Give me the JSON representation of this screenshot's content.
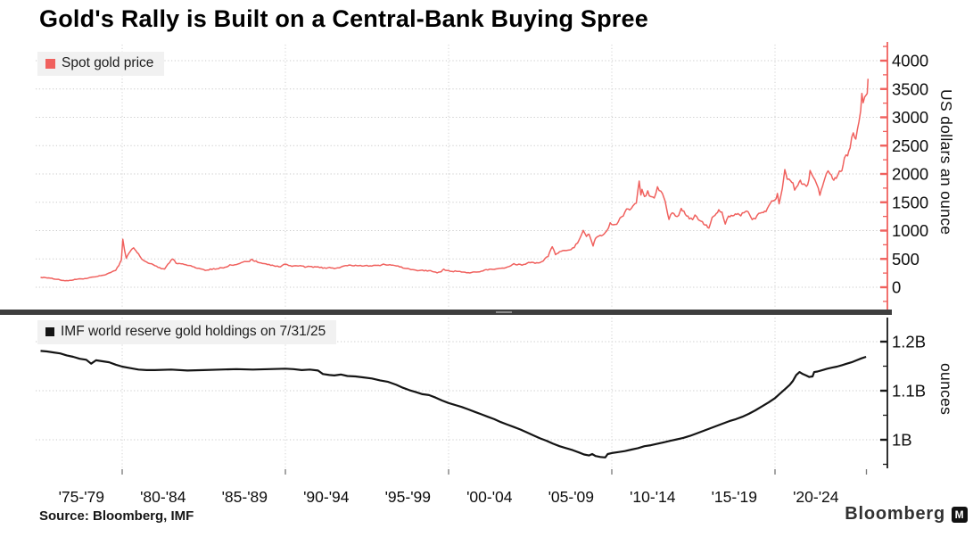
{
  "title": "Gold's Rally is Built on a Central-Bank Buying Spree",
  "source": "Source: Bloomberg, IMF",
  "watermark": {
    "brand": "Bloomberg",
    "badge": "M"
  },
  "colors": {
    "gold_line": "#F0615E",
    "holdings_line": "#141414",
    "grid": "#c9c9c9",
    "grid_vertical": "#d2d2d2",
    "legend_bg": "#f1f1f1",
    "divider": "#3e3e3e",
    "text": "#111111"
  },
  "x_axis": {
    "gridline_years": [
      1980,
      1990,
      2000,
      2010,
      2020
    ],
    "end_tick_year": 2025.6,
    "labels": [
      {
        "text": "'75-'79",
        "center_year": 1977.5
      },
      {
        "text": "'80-'84",
        "center_year": 1982.5
      },
      {
        "text": "'85-'89",
        "center_year": 1987.5
      },
      {
        "text": "'90-'94",
        "center_year": 1992.5
      },
      {
        "text": "'95-'99",
        "center_year": 1997.5
      },
      {
        "text": "'00-'04",
        "center_year": 2002.5
      },
      {
        "text": "'05-'09",
        "center_year": 2007.5
      },
      {
        "text": "'10-'14",
        "center_year": 2012.5
      },
      {
        "text": "'15-'19",
        "center_year": 2017.5
      },
      {
        "text": "'20-'24",
        "center_year": 2022.5
      }
    ]
  },
  "chart_data": [
    {
      "type": "line",
      "panel": "top",
      "name": "Spot gold price",
      "color": "#F0615E",
      "ylabel": "US dollars an ounce",
      "ylim": [
        0,
        4000
      ],
      "yticks": [
        {
          "v": 0,
          "label": "0"
        },
        {
          "v": 500,
          "label": "500"
        },
        {
          "v": 1000,
          "label": "1000"
        },
        {
          "v": 1500,
          "label": "1500"
        },
        {
          "v": 2000,
          "label": "2000"
        },
        {
          "v": 2500,
          "label": "2500"
        },
        {
          "v": 3000,
          "label": "3000"
        },
        {
          "v": 3500,
          "label": "3500"
        },
        {
          "v": 4000,
          "label": "4000"
        }
      ],
      "minor_yticks": [
        -250,
        250,
        750,
        1250,
        1750,
        2250,
        2750,
        3250,
        3750,
        4250
      ],
      "x": [
        1975.0,
        1975.3,
        1975.6,
        1975.9,
        1976.2,
        1976.5,
        1976.8,
        1977.1,
        1977.4,
        1977.7,
        1978.0,
        1978.4,
        1978.7,
        1979.0,
        1979.3,
        1979.6,
        1979.8,
        1979.95,
        1980.04,
        1980.15,
        1980.25,
        1980.4,
        1980.55,
        1980.7,
        1980.85,
        1981.0,
        1981.2,
        1981.5,
        1981.8,
        1982.1,
        1982.4,
        1982.6,
        1982.8,
        1983.0,
        1983.1,
        1983.3,
        1983.6,
        1983.9,
        1984.2,
        1984.5,
        1984.8,
        1985.1,
        1985.4,
        1985.7,
        1986.0,
        1986.3,
        1986.6,
        1986.9,
        1987.2,
        1987.5,
        1987.8,
        1987.95,
        1988.2,
        1988.5,
        1988.8,
        1989.1,
        1989.4,
        1989.7,
        1989.9,
        1990.1,
        1990.4,
        1990.6,
        1990.9,
        1991.2,
        1991.5,
        1991.8,
        1992.1,
        1992.4,
        1992.7,
        1993.0,
        1993.3,
        1993.6,
        1993.9,
        1994.2,
        1994.5,
        1994.8,
        1995.1,
        1995.4,
        1995.7,
        1996.0,
        1996.3,
        1996.6,
        1996.9,
        1997.2,
        1997.5,
        1997.8,
        1998.1,
        1998.4,
        1998.7,
        1999.0,
        1999.3,
        1999.55,
        1999.7,
        1999.9,
        2000.2,
        2000.5,
        2000.8,
        2001.1,
        2001.3,
        2001.6,
        2001.9,
        2002.2,
        2002.5,
        2002.8,
        2003.1,
        2003.4,
        2003.7,
        2004.0,
        2004.3,
        2004.6,
        2004.9,
        2005.2,
        2005.5,
        2005.8,
        2006.1,
        2006.35,
        2006.55,
        2006.8,
        2007.1,
        2007.4,
        2007.7,
        2007.9,
        2008.15,
        2008.25,
        2008.45,
        2008.6,
        2008.75,
        2008.85,
        2009.0,
        2009.2,
        2009.45,
        2009.7,
        2009.9,
        2010.1,
        2010.3,
        2010.5,
        2010.7,
        2010.9,
        2011.1,
        2011.3,
        2011.5,
        2011.68,
        2011.78,
        2011.85,
        2012.0,
        2012.2,
        2012.4,
        2012.6,
        2012.8,
        2013.0,
        2013.2,
        2013.35,
        2013.5,
        2013.7,
        2013.9,
        2014.1,
        2014.25,
        2014.5,
        2014.75,
        2014.95,
        2015.1,
        2015.3,
        2015.55,
        2015.8,
        2015.95,
        2016.15,
        2016.4,
        2016.55,
        2016.75,
        2016.95,
        2017.15,
        2017.4,
        2017.65,
        2017.9,
        2018.1,
        2018.35,
        2018.6,
        2018.8,
        2019.0,
        2019.2,
        2019.45,
        2019.6,
        2019.8,
        2020.0,
        2020.15,
        2020.25,
        2020.45,
        2020.6,
        2020.75,
        2020.95,
        2021.1,
        2021.2,
        2021.4,
        2021.55,
        2021.7,
        2021.85,
        2022.0,
        2022.15,
        2022.35,
        2022.55,
        2022.75,
        2022.9,
        2023.05,
        2023.25,
        2023.45,
        2023.6,
        2023.75,
        2023.95,
        2024.1,
        2024.25,
        2024.45,
        2024.6,
        2024.8,
        2024.95,
        2025.05,
        2025.15,
        2025.25,
        2025.32,
        2025.4,
        2025.5,
        2025.58,
        2025.65,
        2025.7
      ],
      "y": [
        175,
        168,
        160,
        145,
        130,
        112,
        120,
        135,
        145,
        150,
        168,
        185,
        205,
        228,
        255,
        300,
        390,
        480,
        835,
        640,
        520,
        600,
        650,
        690,
        640,
        580,
        500,
        440,
        415,
        370,
        330,
        320,
        400,
        480,
        500,
        430,
        415,
        390,
        380,
        345,
        330,
        300,
        315,
        325,
        340,
        345,
        390,
        400,
        420,
        450,
        465,
        485,
        455,
        435,
        415,
        390,
        375,
        365,
        405,
        395,
        370,
        385,
        380,
        360,
        365,
        355,
        350,
        340,
        345,
        330,
        345,
        380,
        385,
        380,
        385,
        380,
        378,
        385,
        383,
        400,
        395,
        385,
        370,
        345,
        325,
        310,
        295,
        300,
        290,
        285,
        260,
        268,
        320,
        290,
        280,
        285,
        270,
        262,
        258,
        272,
        278,
        300,
        315,
        320,
        340,
        330,
        370,
        410,
        400,
        395,
        440,
        428,
        432,
        470,
        550,
        715,
        580,
        620,
        650,
        665,
        700,
        790,
        920,
        1000,
        900,
        940,
        830,
        720,
        865,
        905,
        930,
        1000,
        1120,
        1100,
        1120,
        1210,
        1240,
        1390,
        1360,
        1430,
        1510,
        1890,
        1620,
        1750,
        1600,
        1680,
        1590,
        1570,
        1760,
        1680,
        1590,
        1390,
        1210,
        1320,
        1250,
        1250,
        1380,
        1300,
        1220,
        1190,
        1280,
        1190,
        1150,
        1085,
        1060,
        1240,
        1290,
        1365,
        1310,
        1130,
        1240,
        1265,
        1290,
        1275,
        1330,
        1345,
        1185,
        1215,
        1285,
        1300,
        1340,
        1425,
        1510,
        1520,
        1660,
        1480,
        1730,
        2050,
        1880,
        1890,
        1820,
        1700,
        1780,
        1900,
        1790,
        1810,
        1800,
        2040,
        1930,
        1810,
        1640,
        1770,
        1920,
        2030,
        1960,
        1915,
        1930,
        2060,
        2030,
        2300,
        2320,
        2480,
        2740,
        2620,
        2750,
        2900,
        3120,
        3420,
        3280,
        3330,
        3360,
        3440,
        3680
      ]
    },
    {
      "type": "line",
      "panel": "bottom",
      "name": "IMF world reserve gold holdings on 7/31/25",
      "color": "#141414",
      "ylabel": "ounces",
      "ylim": [
        0.94,
        1.225
      ],
      "yticks": [
        {
          "v": 1.0,
          "label": "1B"
        },
        {
          "v": 1.1,
          "label": "1.1B"
        },
        {
          "v": 1.2,
          "label": "1.2B"
        }
      ],
      "minor_yticks": [
        0.95,
        1.05,
        1.15
      ],
      "x": [
        1975.0,
        1975.4,
        1975.8,
        1976.2,
        1976.6,
        1977.0,
        1977.4,
        1977.8,
        1978.1,
        1978.4,
        1978.8,
        1979.2,
        1979.6,
        1980.0,
        1980.5,
        1981.0,
        1981.5,
        1982.0,
        1983.0,
        1984.0,
        1985.0,
        1986.0,
        1987.0,
        1988.0,
        1989.0,
        1990.0,
        1990.5,
        1991.0,
        1991.5,
        1992.0,
        1992.3,
        1992.7,
        1993.0,
        1993.4,
        1993.8,
        1994.3,
        1994.8,
        1995.3,
        1995.8,
        1996.3,
        1996.8,
        1997.2,
        1997.6,
        1998.0,
        1998.4,
        1998.8,
        1999.2,
        1999.6,
        2000.0,
        2000.4,
        2000.8,
        2001.2,
        2001.6,
        2002.0,
        2002.4,
        2002.8,
        2003.2,
        2003.6,
        2004.0,
        2004.4,
        2004.8,
        2005.2,
        2005.6,
        2006.0,
        2006.4,
        2006.8,
        2007.2,
        2007.6,
        2008.0,
        2008.3,
        2008.6,
        2008.8,
        2009.0,
        2009.3,
        2009.6,
        2009.75,
        2010.0,
        2010.4,
        2010.8,
        2011.2,
        2011.6,
        2012.0,
        2012.4,
        2012.8,
        2013.2,
        2013.6,
        2014.0,
        2014.4,
        2014.8,
        2015.2,
        2015.6,
        2016.0,
        2016.4,
        2016.8,
        2017.2,
        2017.6,
        2018.0,
        2018.4,
        2018.8,
        2019.2,
        2019.6,
        2020.0,
        2020.3,
        2020.6,
        2020.9,
        2021.1,
        2021.3,
        2021.5,
        2021.7,
        2021.9,
        2022.1,
        2022.3,
        2022.4,
        2022.6,
        2022.9,
        2023.2,
        2023.5,
        2023.8,
        2024.1,
        2024.4,
        2024.7,
        2025.0,
        2025.3,
        2025.58
      ],
      "y": [
        1.181,
        1.18,
        1.178,
        1.176,
        1.172,
        1.169,
        1.165,
        1.163,
        1.155,
        1.162,
        1.16,
        1.158,
        1.153,
        1.149,
        1.146,
        1.143,
        1.142,
        1.142,
        1.143,
        1.141,
        1.142,
        1.143,
        1.144,
        1.143,
        1.144,
        1.145,
        1.144,
        1.142,
        1.143,
        1.141,
        1.134,
        1.132,
        1.131,
        1.133,
        1.13,
        1.129,
        1.127,
        1.125,
        1.121,
        1.118,
        1.112,
        1.106,
        1.101,
        1.097,
        1.093,
        1.091,
        1.086,
        1.08,
        1.075,
        1.071,
        1.067,
        1.062,
        1.057,
        1.052,
        1.047,
        1.042,
        1.036,
        1.031,
        1.026,
        1.021,
        1.015,
        1.009,
        1.003,
        0.998,
        0.992,
        0.987,
        0.983,
        0.979,
        0.974,
        0.97,
        0.968,
        0.971,
        0.967,
        0.965,
        0.964,
        0.971,
        0.973,
        0.975,
        0.977,
        0.98,
        0.983,
        0.987,
        0.989,
        0.992,
        0.995,
        0.998,
        1.001,
        1.004,
        1.008,
        1.013,
        1.018,
        1.023,
        1.028,
        1.033,
        1.038,
        1.042,
        1.047,
        1.053,
        1.06,
        1.068,
        1.076,
        1.085,
        1.094,
        1.103,
        1.112,
        1.12,
        1.132,
        1.138,
        1.134,
        1.131,
        1.128,
        1.129,
        1.138,
        1.139,
        1.142,
        1.145,
        1.147,
        1.149,
        1.152,
        1.155,
        1.158,
        1.162,
        1.166,
        1.169
      ]
    }
  ]
}
